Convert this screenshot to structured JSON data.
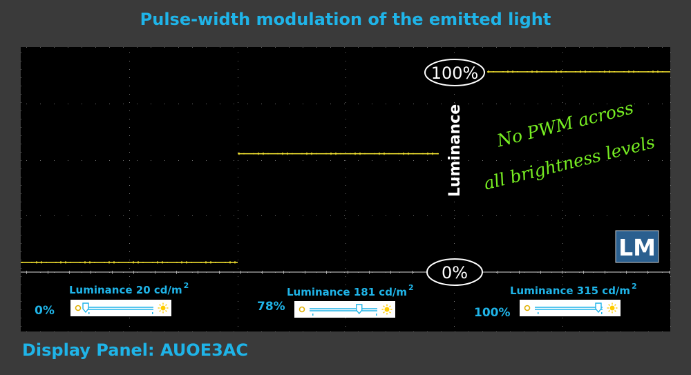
{
  "title": "Pulse-width modulation of the emitted light",
  "footer": "Display Panel: AUOE3AC",
  "colors": {
    "accent": "#1fb4e8",
    "trace": "#ffee33",
    "note": "#77ee22",
    "screen": "#000000",
    "logo_bg": "#2a5f8f"
  },
  "logo": "LM",
  "chart_data": {
    "type": "line",
    "title": "Pulse-width modulation of the emitted light",
    "ylabel": "Luminance",
    "ylim": [
      0,
      100
    ],
    "grid": true,
    "ref_labels": {
      "top": "100%",
      "bottom": "0%"
    },
    "annotation": [
      "No PWM across",
      "all brightness levels"
    ],
    "panels": [
      {
        "brightness_setting": "0%",
        "luminance_label": "Luminance 20 cd/m",
        "luminance_value": 20,
        "unit_superscript": "2",
        "level_percent": 0,
        "slider_fraction": 0.0
      },
      {
        "brightness_setting": "78%",
        "luminance_label": "Luminance 181 cd/m",
        "luminance_value": 181,
        "unit_superscript": "2",
        "level_percent": 57,
        "slider_fraction": 0.78
      },
      {
        "brightness_setting": "100%",
        "luminance_label": "Luminance 315 cd/m",
        "luminance_value": 315,
        "unit_superscript": "2",
        "level_percent": 100,
        "slider_fraction": 1.0
      }
    ]
  }
}
